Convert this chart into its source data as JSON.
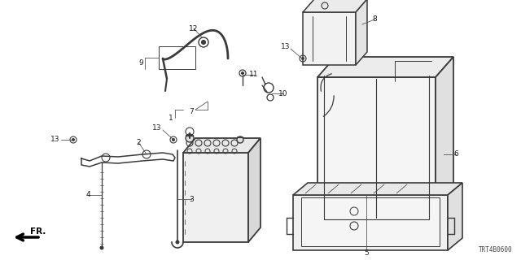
{
  "bg_color": "#ffffff",
  "line_color": "#3a3a3a",
  "part_code": "TRT4B0600",
  "figsize": [
    6.4,
    3.2
  ],
  "dpi": 100
}
